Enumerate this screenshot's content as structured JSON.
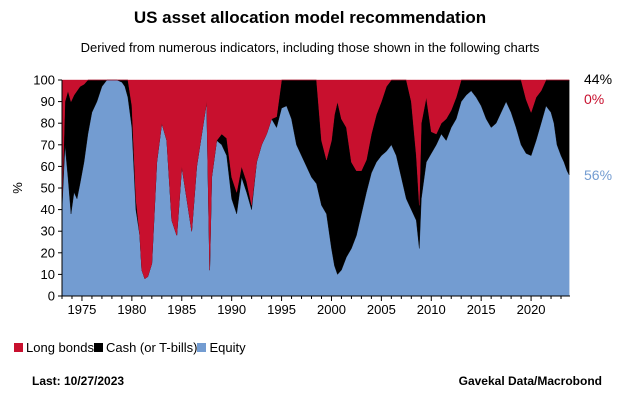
{
  "title": "US asset allocation model recommendation",
  "subtitle": "Derived from numerous indicators, including those shown in the following charts",
  "footer": {
    "last": "Last: 10/27/2023",
    "source": "Gavekal Data/Macrobond"
  },
  "colors": {
    "long_bonds": "#c8102e",
    "cash": "#000000",
    "equity": "#739cd1"
  },
  "chart_data": {
    "type": "area",
    "stacked": true,
    "ylabel": "%",
    "ylim": [
      0,
      100
    ],
    "xlim": [
      1973,
      2023.9
    ],
    "y_ticks": [
      "0",
      "10",
      "20",
      "30",
      "40",
      "50",
      "60",
      "70",
      "80",
      "90",
      "100"
    ],
    "x_ticks": [
      "1975",
      "1980",
      "1985",
      "1990",
      "1995",
      "2000",
      "2005",
      "2010",
      "2015",
      "2020"
    ],
    "legend_position": "bottom-left",
    "latest_labels": [
      {
        "series": "Cash (or T-bills)",
        "text": "44%",
        "color": "#000000"
      },
      {
        "series": "Long bonds",
        "text": "0%",
        "color": "#c8102e"
      },
      {
        "series": "Equity",
        "text": "56%",
        "color": "#739cd1"
      }
    ],
    "x": [
      1973.0,
      1973.3,
      1973.6,
      1973.9,
      1974.2,
      1974.5,
      1974.8,
      1975.2,
      1975.6,
      1976.0,
      1976.5,
      1977.0,
      1977.5,
      1978.0,
      1978.5,
      1979.0,
      1979.3,
      1979.6,
      1980.0,
      1980.4,
      1980.8,
      1981.0,
      1981.3,
      1981.6,
      1982.0,
      1982.5,
      1983.0,
      1983.5,
      1984.0,
      1984.5,
      1985.0,
      1985.5,
      1986.0,
      1986.5,
      1987.0,
      1987.5,
      1987.8,
      1988.0,
      1988.5,
      1989.0,
      1989.5,
      1990.0,
      1990.5,
      1991.0,
      1991.5,
      1992.0,
      1992.5,
      1993.0,
      1993.5,
      1994.0,
      1994.5,
      1995.0,
      1995.5,
      1996.0,
      1996.5,
      1997.0,
      1997.5,
      1998.0,
      1998.5,
      1999.0,
      1999.5,
      2000.0,
      2000.3,
      2000.6,
      2001.0,
      2001.5,
      2002.0,
      2002.5,
      2003.0,
      2003.5,
      2004.0,
      2004.5,
      2005.0,
      2005.5,
      2006.0,
      2006.5,
      2007.0,
      2007.5,
      2008.0,
      2008.5,
      2008.8,
      2009.0,
      2009.5,
      2010.0,
      2010.5,
      2011.0,
      2011.5,
      2012.0,
      2012.5,
      2013.0,
      2013.5,
      2014.0,
      2014.5,
      2015.0,
      2015.5,
      2016.0,
      2016.5,
      2017.0,
      2017.5,
      2018.0,
      2018.5,
      2019.0,
      2019.5,
      2020.0,
      2020.5,
      2021.0,
      2021.5,
      2022.0,
      2022.3,
      2022.6,
      2023.0,
      2023.3,
      2023.6,
      2023.82
    ],
    "series": [
      {
        "name": "Equity",
        "values": [
          40,
          70,
          55,
          38,
          48,
          45,
          52,
          62,
          75,
          85,
          90,
          97,
          100,
          100,
          100,
          99,
          97,
          92,
          78,
          40,
          28,
          12,
          8,
          9,
          15,
          62,
          80,
          72,
          35,
          28,
          60,
          45,
          30,
          60,
          75,
          90,
          12,
          55,
          72,
          70,
          65,
          45,
          38,
          55,
          48,
          40,
          62,
          70,
          75,
          82,
          78,
          87,
          88,
          82,
          70,
          65,
          60,
          55,
          52,
          42,
          38,
          22,
          14,
          10,
          12,
          18,
          22,
          28,
          38,
          48,
          57,
          62,
          65,
          67,
          70,
          65,
          55,
          45,
          40,
          35,
          22,
          45,
          62,
          66,
          70,
          75,
          72,
          78,
          82,
          90,
          93,
          95,
          92,
          88,
          82,
          78,
          80,
          85,
          90,
          85,
          78,
          70,
          66,
          65,
          72,
          80,
          88,
          85,
          80,
          70,
          65,
          62,
          58,
          56
        ]
      },
      {
        "name": "Cash (or T-bills)",
        "values": [
          0,
          20,
          40,
          52,
          45,
          50,
          45,
          36,
          25,
          15,
          10,
          3,
          0,
          0,
          0,
          1,
          3,
          8,
          10,
          5,
          0,
          0,
          0,
          0,
          0,
          0,
          0,
          0,
          0,
          0,
          0,
          0,
          0,
          0,
          0,
          0,
          0,
          0,
          0,
          5,
          8,
          10,
          10,
          5,
          5,
          2,
          0,
          0,
          0,
          0,
          5,
          13,
          12,
          18,
          30,
          35,
          40,
          45,
          48,
          30,
          25,
          50,
          70,
          80,
          70,
          60,
          40,
          30,
          20,
          15,
          18,
          22,
          25,
          30,
          30,
          35,
          45,
          55,
          50,
          30,
          20,
          35,
          30,
          10,
          5,
          5,
          10,
          8,
          10,
          10,
          7,
          5,
          8,
          12,
          18,
          22,
          20,
          15,
          10,
          15,
          22,
          30,
          25,
          20,
          20,
          15,
          12,
          15,
          20,
          30,
          35,
          38,
          42,
          44
        ]
      },
      {
        "name": "Long bonds",
        "values": [
          60,
          10,
          5,
          10,
          7,
          5,
          3,
          2,
          0,
          0,
          0,
          0,
          0,
          0,
          0,
          0,
          0,
          0,
          12,
          55,
          72,
          88,
          92,
          91,
          85,
          38,
          20,
          28,
          65,
          72,
          40,
          55,
          70,
          40,
          25,
          10,
          88,
          45,
          28,
          25,
          27,
          45,
          52,
          40,
          47,
          58,
          38,
          30,
          25,
          18,
          17,
          0,
          0,
          0,
          0,
          0,
          0,
          0,
          0,
          28,
          37,
          28,
          16,
          10,
          18,
          22,
          38,
          42,
          42,
          37,
          25,
          16,
          10,
          3,
          0,
          0,
          0,
          0,
          10,
          35,
          58,
          20,
          8,
          24,
          25,
          20,
          18,
          14,
          8,
          0,
          0,
          0,
          0,
          0,
          0,
          0,
          0,
          0,
          0,
          0,
          0,
          0,
          9,
          15,
          8,
          5,
          0,
          0,
          0,
          0,
          0,
          0,
          0,
          0
        ]
      }
    ]
  },
  "legend": [
    {
      "label": "Long bonds",
      "color": "#c8102e"
    },
    {
      "label": "Cash (or T-bills)",
      "color": "#000000"
    },
    {
      "label": "Equity",
      "color": "#739cd1"
    }
  ]
}
